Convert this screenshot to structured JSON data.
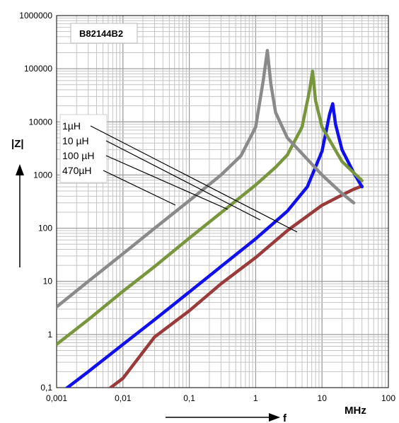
{
  "chart_data": {
    "type": "line",
    "title": "B82144B2",
    "ylabel": "|Z|",
    "xlabel": "f",
    "xunit": "MHz",
    "x_scale": "log",
    "y_scale": "log",
    "xlim": [
      0.001,
      100
    ],
    "ylim": [
      0.1,
      1000000
    ],
    "grid": true,
    "x_ticks": [
      "0,001",
      "0,01",
      "0,1",
      "1",
      "10",
      "100"
    ],
    "y_ticks": [
      "0,1",
      "1",
      "10",
      "100",
      "1000",
      "10000",
      "100000",
      "1000000"
    ],
    "x_tick_values": [
      0.001,
      0.01,
      0.1,
      1,
      10,
      100
    ],
    "y_tick_values": [
      0.1,
      1,
      10,
      100,
      1000,
      10000,
      100000,
      1000000
    ],
    "series": [
      {
        "name": "1µH",
        "color": "#9b3a3a",
        "x": [
          0.0065,
          0.01,
          0.03,
          0.1,
          0.3,
          1,
          3,
          10,
          20,
          30,
          40
        ],
        "y": [
          0.1,
          0.15,
          0.9,
          2.8,
          9,
          28,
          90,
          270,
          420,
          540,
          620
        ]
      },
      {
        "name": "10 µH",
        "color": "#1010ee",
        "x": [
          0.001,
          0.003,
          0.01,
          0.03,
          0.1,
          0.3,
          1,
          3,
          6,
          10,
          13,
          14.5,
          16,
          20,
          30,
          40
        ],
        "y": [
          0.07,
          0.2,
          0.65,
          1.9,
          6.3,
          19,
          63,
          210,
          600,
          2800,
          14000,
          22000,
          9000,
          3000,
          1100,
          600
        ]
      },
      {
        "name": "100 µH",
        "color": "#78963c",
        "x": [
          0.001,
          0.003,
          0.01,
          0.03,
          0.1,
          0.3,
          1,
          2,
          3,
          5,
          6.5,
          7.2,
          8,
          10,
          20,
          40
        ],
        "y": [
          0.65,
          1.9,
          6.5,
          19,
          65,
          195,
          650,
          1400,
          2400,
          8000,
          40000,
          90000,
          25000,
          8000,
          1800,
          780
        ]
      },
      {
        "name": "470µH",
        "color": "#8a8a8a",
        "x": [
          0.001,
          0.003,
          0.01,
          0.03,
          0.1,
          0.3,
          0.6,
          1,
          1.3,
          1.5,
          1.7,
          2,
          3,
          10,
          20,
          30
        ],
        "y": [
          3.3,
          10,
          33,
          100,
          330,
          1000,
          2300,
          8000,
          60000,
          220000,
          50000,
          15000,
          5000,
          1000,
          450,
          300
        ]
      }
    ],
    "annotation_labels": [
      "1µH",
      "10 µH",
      "100 µH",
      "470µH"
    ]
  }
}
